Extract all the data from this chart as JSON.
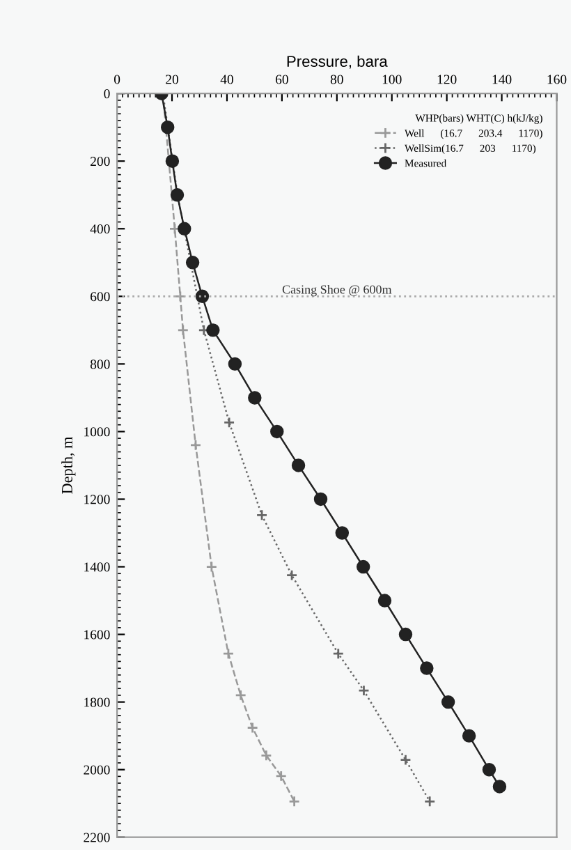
{
  "chart_data": {
    "type": "line",
    "xlabel": "Pressure, bara",
    "ylabel": "Depth, m",
    "legend_title": "WHP(bars) WHT(C) h(kJ/kg)",
    "xlim": [
      0,
      160
    ],
    "xticks": [
      0,
      20,
      40,
      60,
      80,
      100,
      120,
      140,
      160
    ],
    "ylim": [
      2200,
      0
    ],
    "yticks": [
      0,
      200,
      400,
      600,
      800,
      1000,
      1200,
      1400,
      1600,
      1800,
      2000,
      2200
    ],
    "grid": false,
    "legend": "top right",
    "ref_lines": [
      {
        "axis": "y",
        "value": 600,
        "label": "Casing Shoe @ 600m",
        "color": "#aaaaaa",
        "line_style": "dotted"
      }
    ],
    "series": [
      {
        "name": "Well      (16.7      203.4      1170)",
        "color": "#999999",
        "marker": "cross",
        "line_style": "dashed",
        "x": [
          16.7,
          21,
          23,
          24,
          28.6,
          34.4,
          40.5,
          45,
          49.3,
          54.3,
          59.7,
          64.5
        ],
        "values": [
          0,
          400,
          600,
          700,
          1040,
          1400,
          1657,
          1780,
          1876,
          1958,
          2019,
          2094
        ]
      },
      {
        "name": "WellSim(16.7      203      1170)",
        "color": "#666666",
        "marker": "cross",
        "line_style": "dotted",
        "x": [
          16.7,
          22,
          31.6,
          40.8,
          52.7,
          63.6,
          80.5,
          89.8,
          105,
          113.8
        ],
        "values": [
          0,
          300,
          700,
          973,
          1247,
          1425,
          1657,
          1766,
          1971,
          2094
        ]
      },
      {
        "name": "Measured",
        "color": "#222222",
        "marker": "circle",
        "line_style": "solid",
        "x": [
          16.2,
          18.4,
          20.1,
          21.9,
          24.5,
          27.5,
          31,
          34.9,
          42.9,
          50.1,
          58.2,
          66.0,
          74.1,
          81.9,
          89.6,
          97.4,
          105.0,
          112.7,
          120.5,
          128.1,
          135.4,
          139.2
        ],
        "values": [
          0,
          100,
          200,
          300,
          400,
          500,
          600,
          700,
          800,
          900,
          1000,
          1100,
          1200,
          1300,
          1400,
          1500,
          1600,
          1700,
          1800,
          1900,
          2000,
          2050
        ]
      }
    ]
  }
}
